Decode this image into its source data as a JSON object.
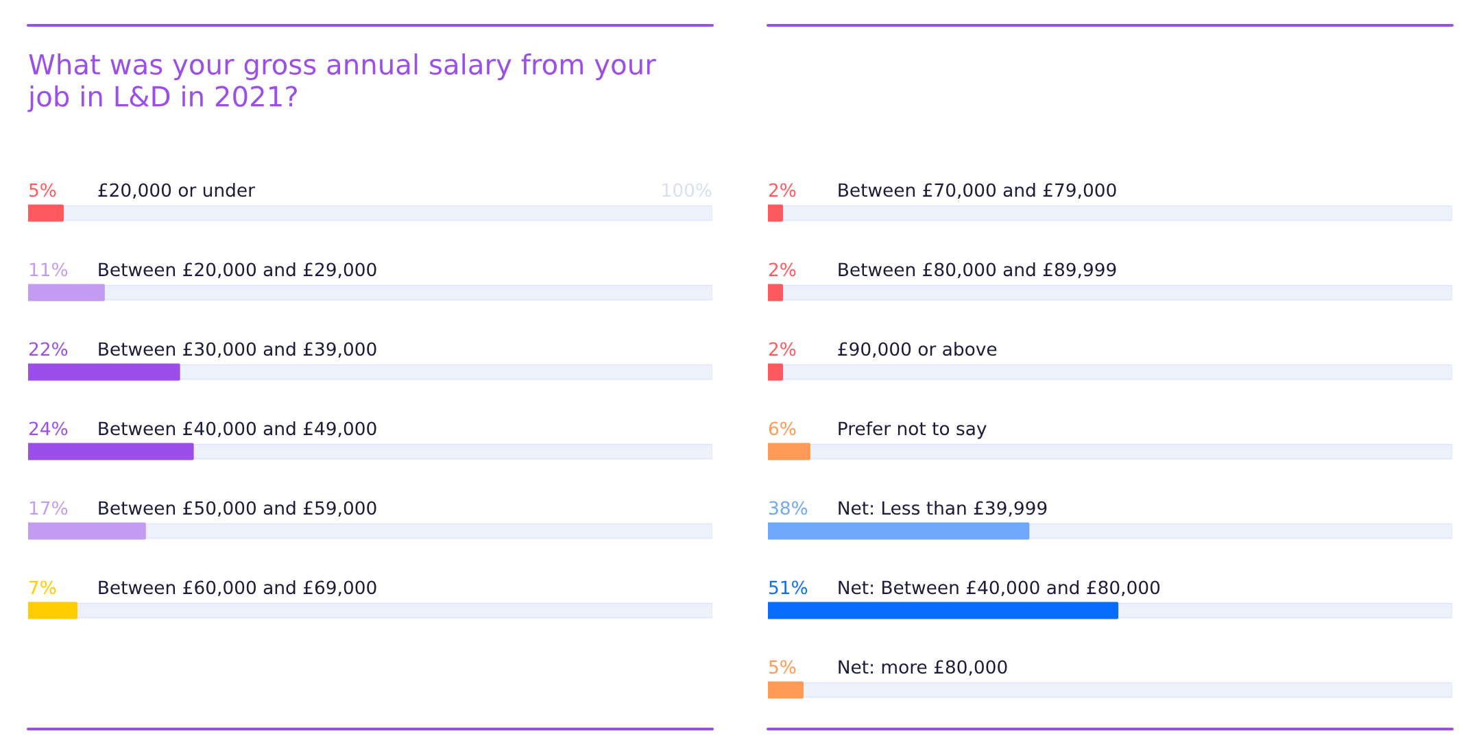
{
  "chart_data": [
    {
      "type": "bar",
      "orientation": "horizontal",
      "title": "What was your gross annual salary from your\njob in L&D in 2021?",
      "categories": [
        "£20,000 or under",
        "Between £20,000 and £29,000",
        "Between £30,000 and £39,000",
        "Between £40,000 and £49,000",
        "Between £50,000 and £59,000",
        "Between £60,000 and £69,000"
      ],
      "values": [
        5,
        11,
        22,
        24,
        17,
        7
      ],
      "colors": [
        "#ff5a5f",
        "#c39bf0",
        "#9b4fe8",
        "#9b4fe8",
        "#c39bf0",
        "#ffcc00"
      ],
      "value_labels": [
        "5%",
        "11%",
        "22%",
        "24%",
        "17%",
        "7%"
      ],
      "xlim": [
        0,
        100
      ],
      "annotations": [
        "100%"
      ]
    },
    {
      "type": "bar",
      "orientation": "horizontal",
      "categories": [
        "Between £70,000 and £79,000",
        "Between £80,000 and £89,999",
        "£90,000 or above",
        "Prefer not to say",
        "Net: Less than £39,999",
        "Net: Between £40,000 and £80,000",
        "Net: more £80,000"
      ],
      "values": [
        2,
        2,
        2,
        6,
        38,
        51,
        5
      ],
      "colors": [
        "#ff5a5f",
        "#ff5a5f",
        "#ff5a5f",
        "#ff9a57",
        "#6fa8fb",
        "#0a6cff",
        "#ff9a57"
      ],
      "value_labels": [
        "2%",
        "2%",
        "2%",
        "6%",
        "38%",
        "51%",
        "5%"
      ],
      "xlim": [
        0,
        100
      ]
    }
  ]
}
